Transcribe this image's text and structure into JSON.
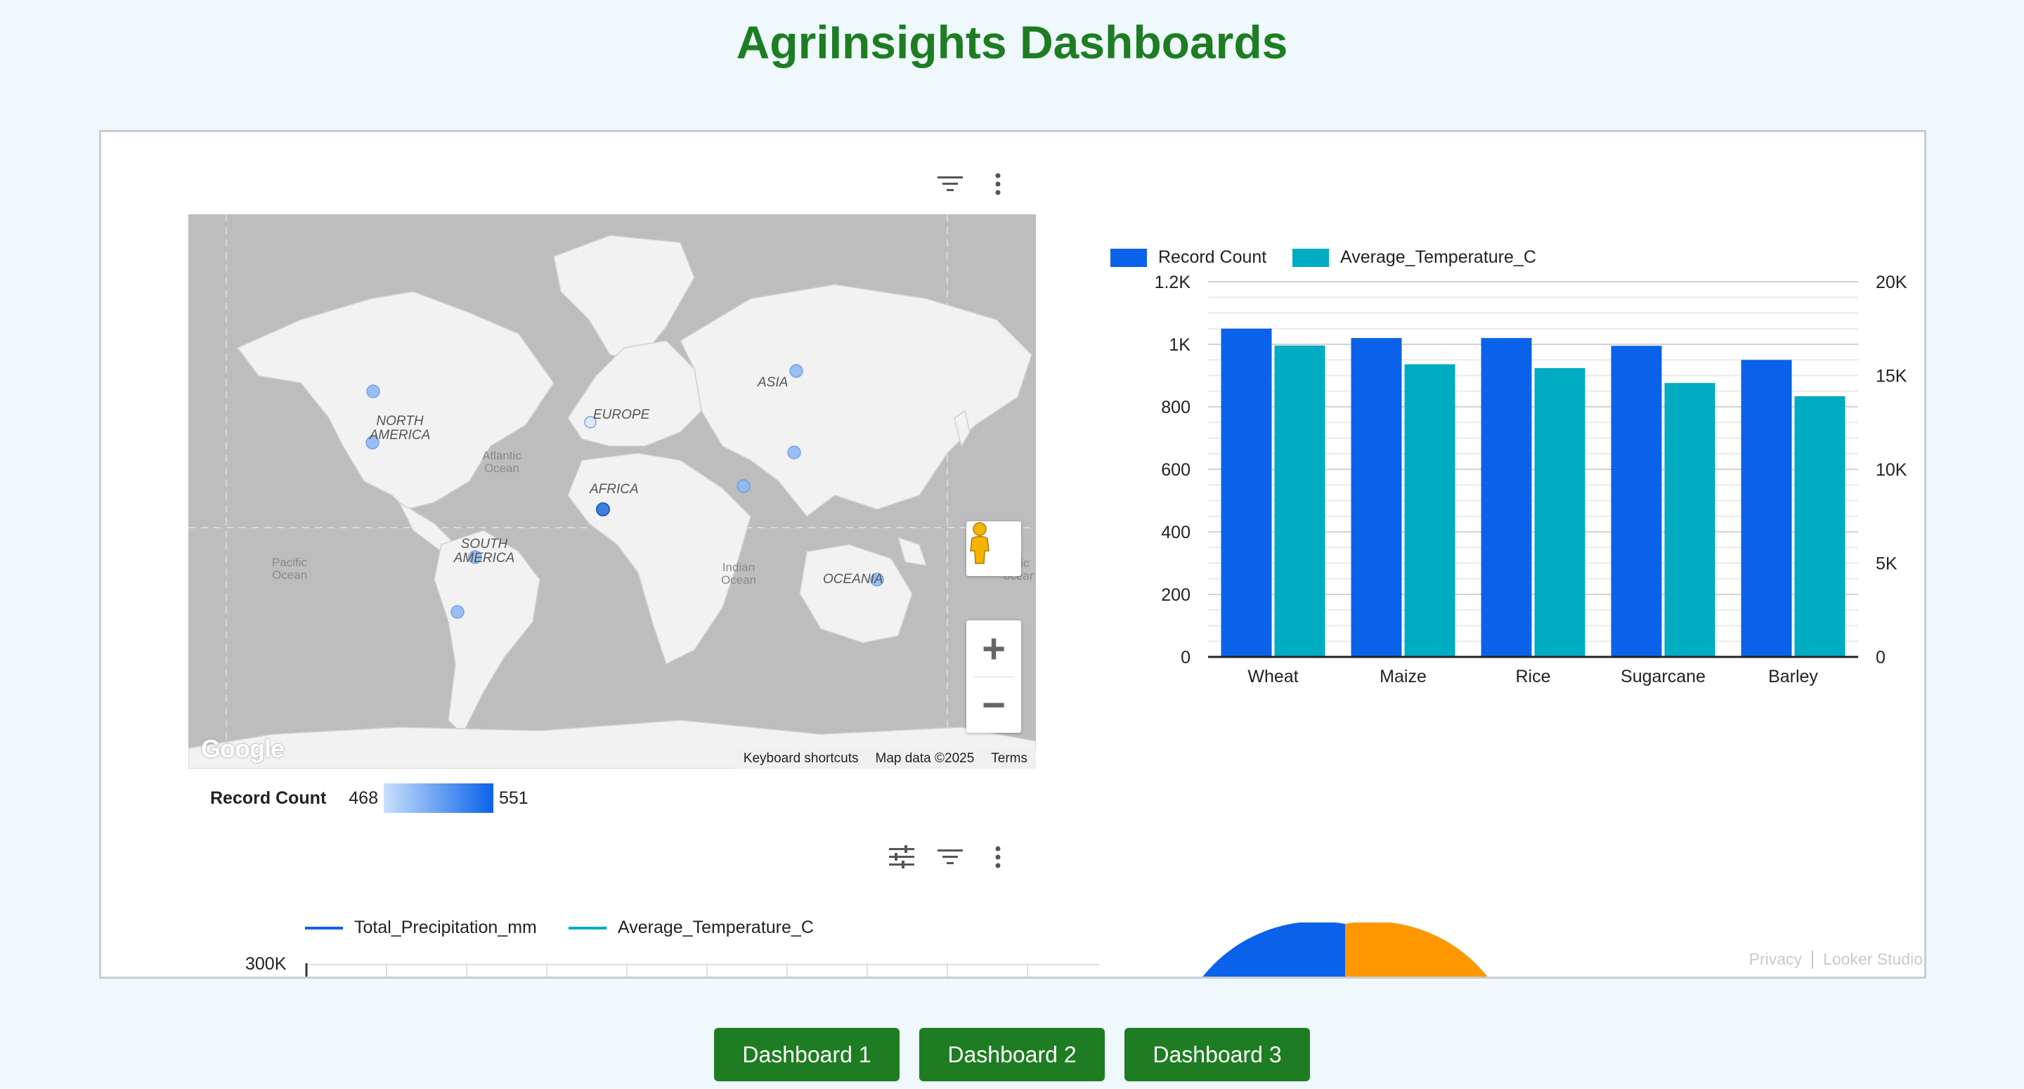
{
  "page": {
    "title": "AgriInsights Dashboards"
  },
  "map_widget": {
    "labels": {
      "north_america": "NORTH AMERICA",
      "south_america": "SOUTH AMERICA",
      "europe": "EUROPE",
      "asia": "ASIA",
      "africa": "AFRICA",
      "oceania": "OCEANIA"
    },
    "oceans": {
      "atlantic": "Atlantic Ocean",
      "pacific": "Pacific Ocean",
      "indian": "Indian Ocean",
      "pacific_right": "cific ocean"
    },
    "google": "Google",
    "footer": {
      "shortcuts": "Keyboard shortcuts",
      "map_data": "Map data ©2025",
      "terms": "Terms"
    },
    "legend": {
      "label": "Record Count",
      "min": "468",
      "max": "551"
    },
    "icons": [
      "filter-icon",
      "more-vert-icon",
      "pegman-icon",
      "zoom-in-icon",
      "zoom-out-icon"
    ]
  },
  "bar_chart_data": {
    "type": "bar",
    "categories": [
      "Wheat",
      "Maize",
      "Rice",
      "Sugarcane",
      "Barley"
    ],
    "series": [
      {
        "name": "Record Count",
        "axis": "left",
        "color": "#0a62ea",
        "values": [
          1050,
          1020,
          1020,
          995,
          950
        ]
      },
      {
        "name": "Average_Temperature_C",
        "axis": "right",
        "color": "#00acc1",
        "values": [
          16600,
          15600,
          15400,
          14600,
          13900
        ]
      }
    ],
    "left_axis": {
      "ticks": [
        "0",
        "200",
        "400",
        "600",
        "800",
        "1K",
        "1.2K"
      ],
      "ylim": [
        0,
        1200
      ]
    },
    "right_axis": {
      "ticks": [
        "0",
        "5K",
        "10K",
        "15K",
        "20K"
      ],
      "ylim": [
        0,
        20000
      ]
    },
    "legend_position": "top-left"
  },
  "line_chart": {
    "legend": [
      "Total_Precipitation_mm",
      "Average_Temperature_C"
    ],
    "colors": [
      "#0a62ea",
      "#00acc1"
    ],
    "top_tick": "300K",
    "icons": [
      "tune-icon",
      "filter-icon",
      "more-vert-icon"
    ]
  },
  "pie_chart": {
    "colors": [
      "#0a62ea",
      "#ff9800"
    ]
  },
  "footer": {
    "privacy": "Privacy",
    "brand": "Looker Studio"
  },
  "nav_buttons": [
    {
      "label": "Dashboard 1"
    },
    {
      "label": "Dashboard 2"
    },
    {
      "label": "Dashboard 3"
    }
  ]
}
